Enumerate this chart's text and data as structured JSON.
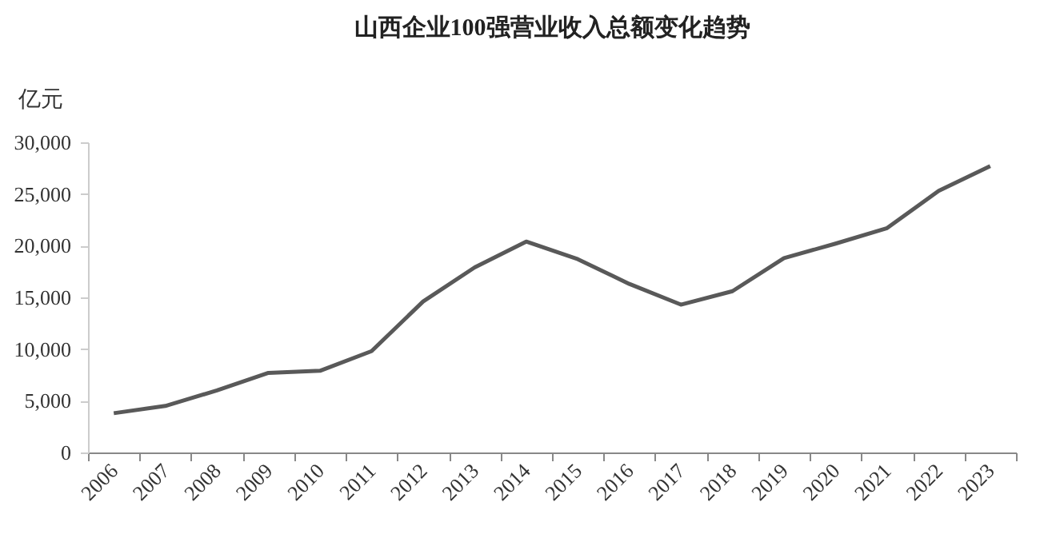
{
  "chart_data": {
    "type": "line",
    "title": "山西企业100强营业收入总额变化趋势",
    "ylabel": "亿元",
    "categories": [
      "2006",
      "2007",
      "2008",
      "2009",
      "2010",
      "2011",
      "2012",
      "2013",
      "2014",
      "2015",
      "2016",
      "2017",
      "2018",
      "2019",
      "2020",
      "2021",
      "2022",
      "2023"
    ],
    "series": [
      {
        "color": "#595959",
        "values": [
          3800,
          4500,
          6000,
          7700,
          7900,
          9800,
          14600,
          17900,
          20400,
          18700,
          16300,
          14300,
          15600,
          18800,
          20200,
          21700,
          25300,
          27700
        ]
      }
    ],
    "ylim": [
      0,
      30000
    ],
    "yticks": [
      0,
      {
        "value": 5000,
        "label": "5,000"
      },
      {
        "value": 10000,
        "label": "10,000"
      },
      {
        "value": 15000,
        "label": "15,000"
      },
      {
        "value": 20000,
        "label": "20,000"
      },
      {
        "value": 25000,
        "label": "25,000"
      },
      {
        "value": 30000,
        "label": "30,000"
      }
    ],
    "grid": false,
    "legend": false,
    "marker": "none",
    "line_style": "solid"
  }
}
